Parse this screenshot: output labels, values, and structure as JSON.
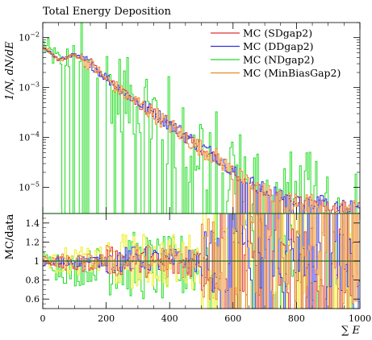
{
  "chart_data": [
    {
      "type": "line",
      "title": "Total Energy Deposition",
      "xlabel": "",
      "ylabel": "1/N, dN/dE",
      "yscale": "log",
      "xlim": [
        0,
        1000
      ],
      "ylim": [
        3e-06,
        0.02
      ],
      "y_ticks": [
        {
          "label": "10^{-2}",
          "mant": "10",
          "exp": "−2",
          "value": 0.01
        },
        {
          "label": "10^{-3}",
          "mant": "10",
          "exp": "−3",
          "value": 0.001
        },
        {
          "label": "10^{-4}",
          "mant": "10",
          "exp": "−4",
          "value": 0.0001
        },
        {
          "label": "10^{-5}",
          "mant": "10",
          "exp": "−5",
          "value": 1e-05
        }
      ],
      "legend_position": "top-right",
      "series": [
        {
          "name": "MC (SDgap2)",
          "color": "#e03030",
          "x": [
            0,
            50,
            100,
            150,
            200,
            250,
            300,
            350,
            400,
            450,
            500,
            550,
            600,
            650,
            700,
            750,
            800,
            850,
            900,
            950,
            1000
          ],
          "values": [
            0.007,
            0.0035,
            0.0045,
            0.003,
            0.0015,
            0.0008,
            0.0005,
            0.0003,
            0.00018,
            0.0001,
            6e-05,
            4e-05,
            2e-05,
            1.2e-05,
            8e-06,
            6e-06,
            5e-06,
            5e-06,
            4e-06,
            4e-06,
            4e-06
          ]
        },
        {
          "name": "MC (DDgap2)",
          "color": "#3030e0",
          "x": [
            0,
            50,
            100,
            150,
            200,
            250,
            300,
            350,
            400,
            450,
            500,
            550,
            600,
            650,
            700,
            750,
            800,
            850,
            900,
            950,
            1000
          ],
          "values": [
            0.0068,
            0.0036,
            0.0046,
            0.0031,
            0.0016,
            0.00085,
            0.00052,
            0.00031,
            0.00019,
            0.00011,
            6.5e-05,
            4.2e-05,
            2.2e-05,
            1.3e-05,
            9e-06,
            7e-06,
            6e-06,
            5e-06,
            5e-06,
            4e-06,
            4e-06
          ]
        },
        {
          "name": "MC (NDgap2)",
          "color": "#22dd22",
          "x": [
            0,
            50,
            100,
            150,
            200,
            250,
            300,
            350,
            400,
            450,
            500,
            550,
            600,
            650,
            700,
            750,
            800,
            850,
            900,
            950,
            1000
          ],
          "values": [
            0.0072,
            0.0034,
            0.0044,
            0.0029,
            0.0014,
            0.00075,
            0.00048,
            0.00028,
            0.00017,
            0.0001,
            6e-05,
            4e-05,
            2e-05,
            1.2e-05,
            8e-06,
            6e-06,
            5e-06,
            5e-06,
            4e-06,
            4e-06,
            4e-06
          ]
        },
        {
          "name": "MC (MinBiasGap2)",
          "color": "#ee8822",
          "x": [
            0,
            50,
            100,
            150,
            200,
            250,
            300,
            350,
            400,
            450,
            500,
            550,
            600,
            650,
            700,
            750,
            800,
            850,
            900,
            950,
            1000
          ],
          "values": [
            0.007,
            0.0035,
            0.0045,
            0.003,
            0.0015,
            0.0008,
            0.0005,
            0.0003,
            0.00018,
            0.0001,
            6e-05,
            4e-05,
            2e-05,
            1.2e-05,
            8e-06,
            6e-06,
            5e-06,
            5e-06,
            4e-06,
            4e-06,
            4e-06
          ]
        }
      ]
    },
    {
      "type": "line",
      "xlabel": "∑ E",
      "ylabel": "MC/data",
      "xlim": [
        0,
        1000
      ],
      "ylim": [
        0.5,
        1.5
      ],
      "x_ticks": [
        "0",
        "200",
        "400",
        "600",
        "800",
        "1000"
      ],
      "y_ticks": [
        "0.6",
        "0.8",
        "1",
        "1.2",
        "1.4"
      ],
      "reference_line": 1,
      "series": [
        {
          "color": "#e03030",
          "x": [
            0,
            100,
            200,
            300,
            400,
            500,
            600,
            700,
            800,
            900,
            1000
          ],
          "values": [
            1.0,
            0.95,
            1.0,
            1.0,
            0.95,
            1.0,
            1.0,
            1.0,
            1.0,
            1.0,
            1.0
          ]
        },
        {
          "color": "#3030e0",
          "x": [
            0,
            100,
            200,
            300,
            400,
            500,
            600,
            700,
            800,
            900,
            1000
          ],
          "values": [
            0.97,
            1.0,
            1.0,
            1.03,
            1.0,
            1.0,
            1.0,
            1.0,
            1.0,
            1.0,
            1.0
          ]
        },
        {
          "color": "#22dd22",
          "x": [
            0,
            100,
            200,
            300,
            400,
            500,
            600,
            700,
            800,
            900,
            1000
          ],
          "values": [
            1.02,
            0.9,
            1.0,
            0.95,
            0.9,
            1.0,
            1.0,
            1.0,
            1.0,
            1.0,
            1.0
          ]
        },
        {
          "color": "#ee8822",
          "x": [
            0,
            100,
            200,
            300,
            400,
            500,
            600,
            700,
            800,
            900,
            1000
          ],
          "values": [
            1.0,
            0.98,
            1.0,
            1.0,
            1.0,
            1.0,
            1.0,
            1.0,
            1.0,
            1.0,
            1.0
          ]
        },
        {
          "color": "#eeee22",
          "x": [
            0,
            100,
            200,
            300,
            400,
            500,
            600,
            700,
            800,
            900,
            1000
          ],
          "values": [
            1.0,
            1.0,
            1.0,
            1.0,
            1.0,
            1.0,
            1.0,
            1.0,
            1.0,
            1.0,
            1.0
          ]
        }
      ]
    }
  ]
}
